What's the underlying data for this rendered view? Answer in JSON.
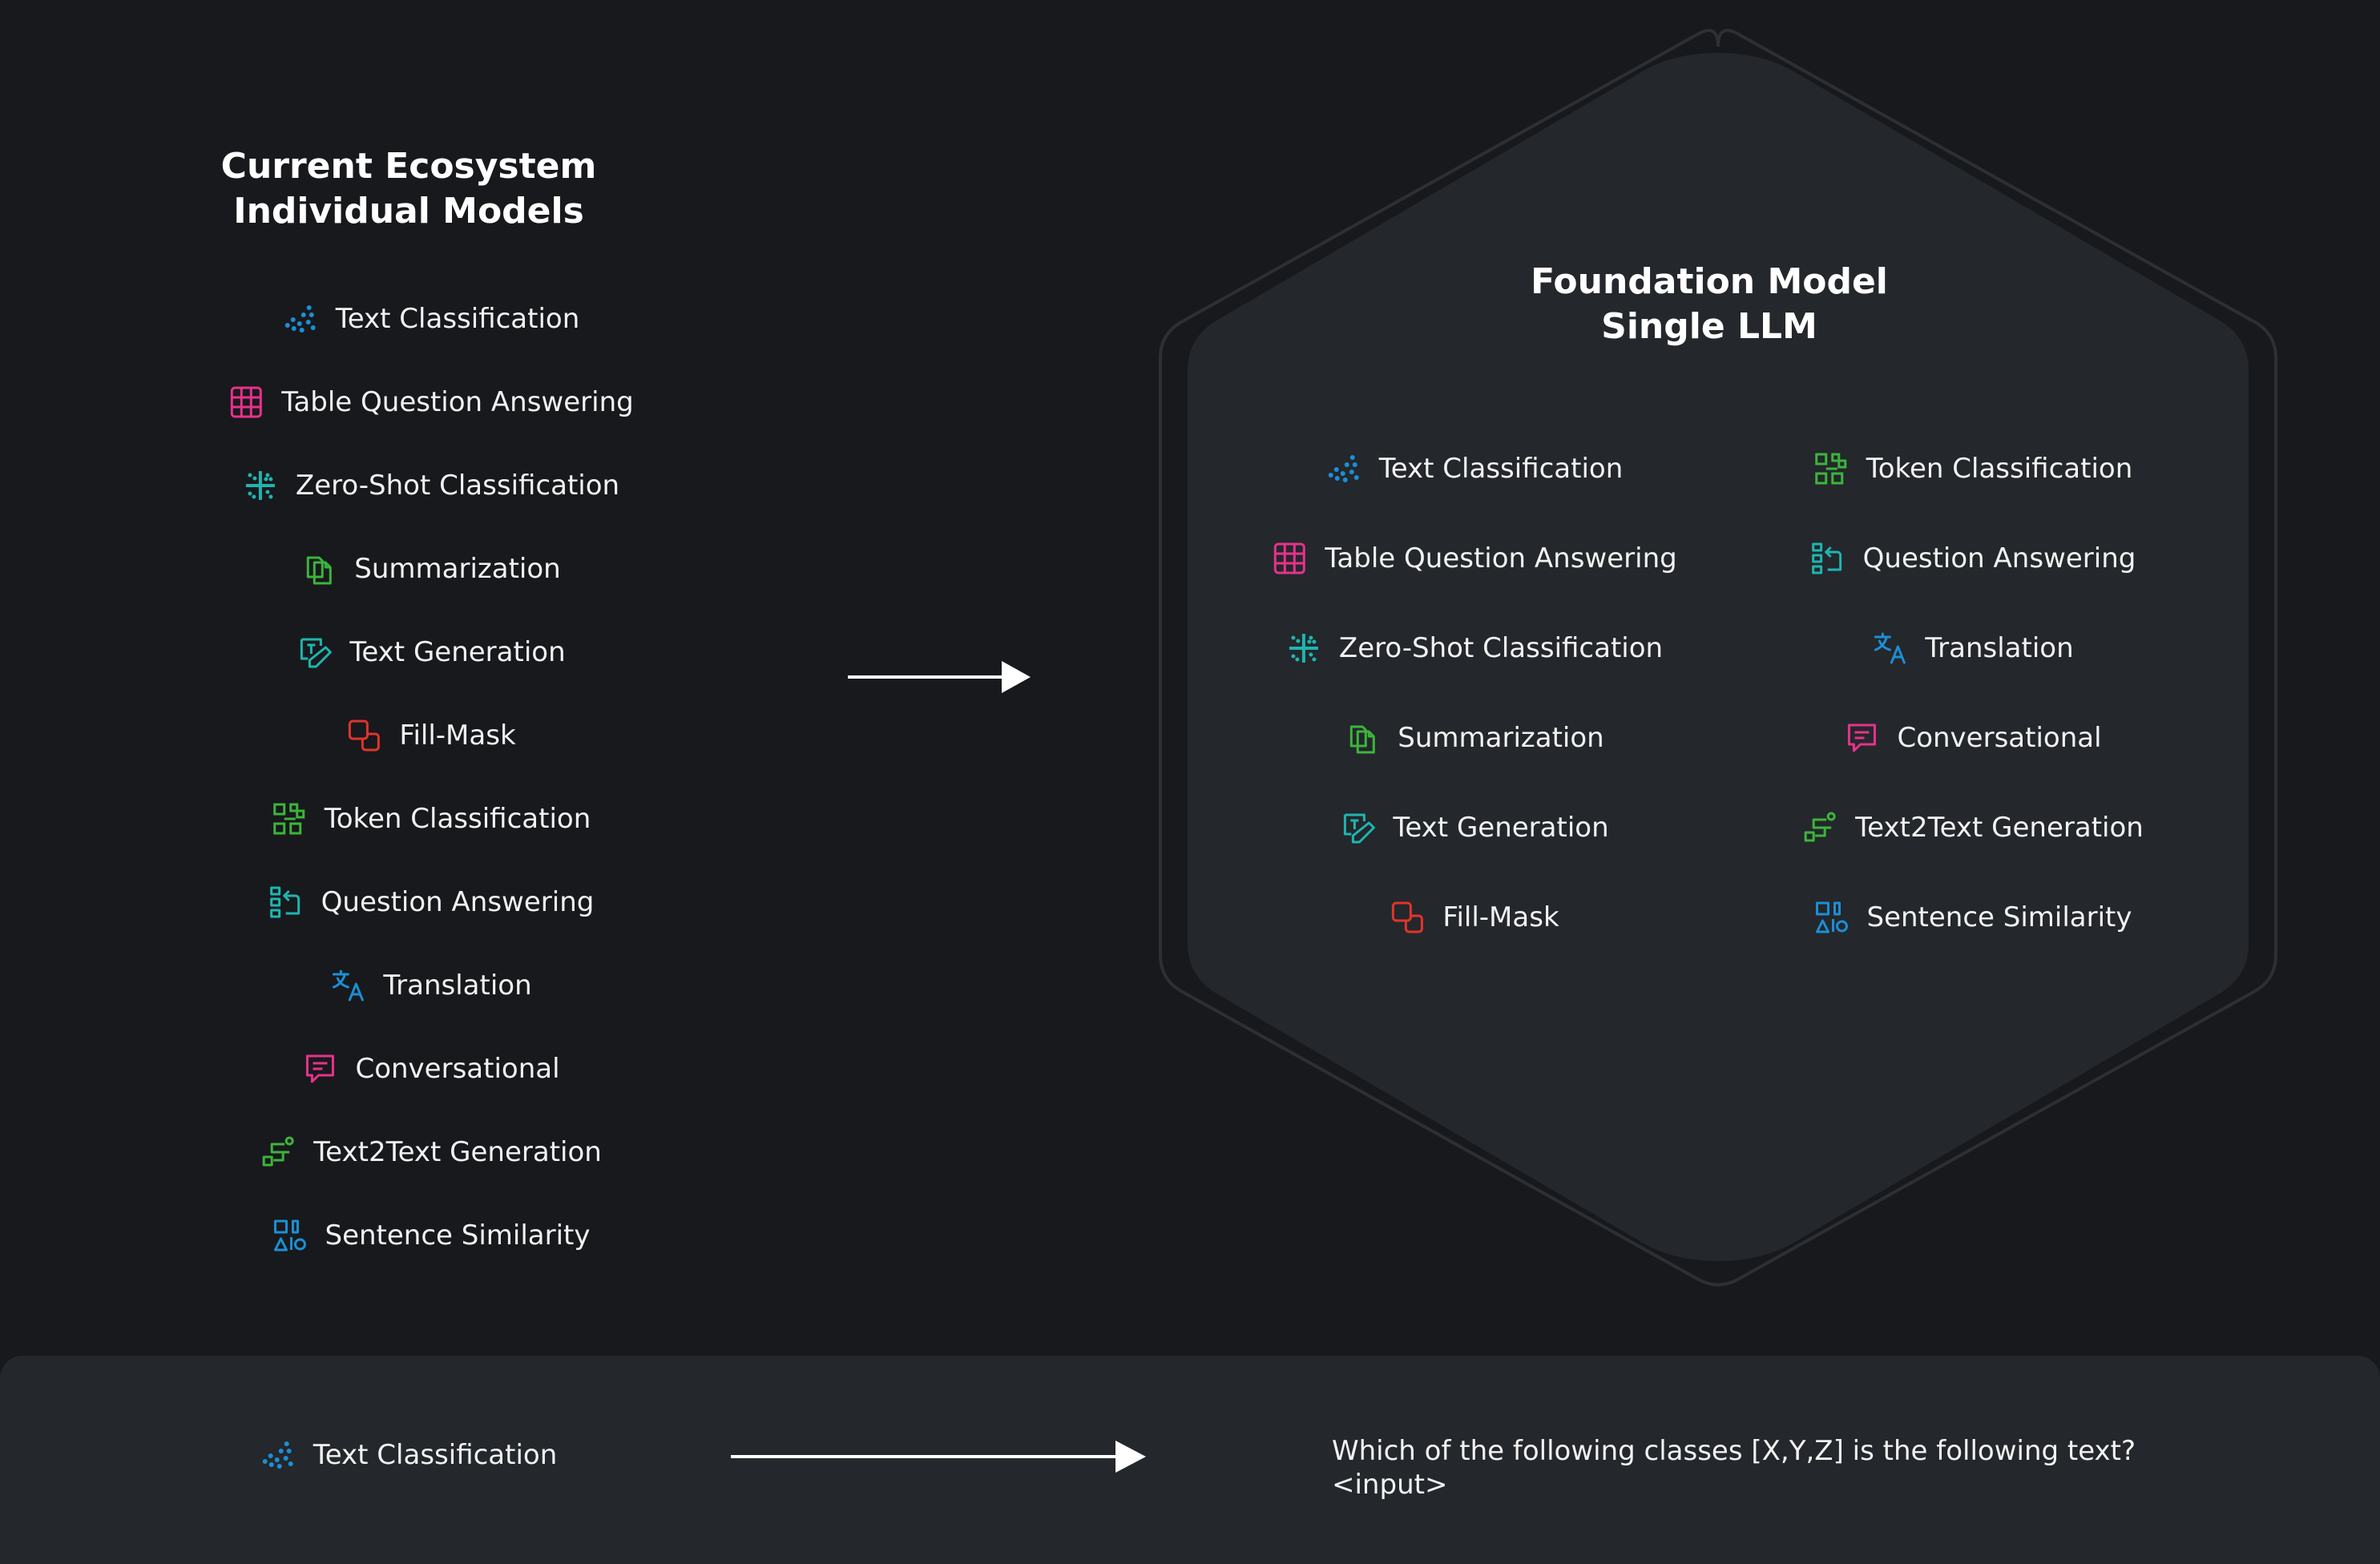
{
  "colors": {
    "background": "#18191c",
    "hex_fill": "#24272b",
    "blue": "#1b8fd6",
    "pink": "#e6328c",
    "green": "#3cb43c",
    "teal": "#1fb5b0",
    "red": "#e0342c"
  },
  "left": {
    "title_line1": "Current Ecosystem",
    "title_line2": "Individual Models",
    "tasks": [
      {
        "label": "Text Classification",
        "icon": "scatter-dots-icon"
      },
      {
        "label": "Table Question Answering",
        "icon": "table-grid-icon"
      },
      {
        "label": "Zero-Shot Classification",
        "icon": "dotted-cross-icon"
      },
      {
        "label": "Summarization",
        "icon": "copy-pages-icon"
      },
      {
        "label": "Text Generation",
        "icon": "text-pen-icon"
      },
      {
        "label": "Fill-Mask",
        "icon": "overlap-squares-icon"
      },
      {
        "label": "Token Classification",
        "icon": "token-blocks-icon"
      },
      {
        "label": "Question Answering",
        "icon": "list-arrow-icon"
      },
      {
        "label": "Translation",
        "icon": "translate-icon"
      },
      {
        "label": "Conversational",
        "icon": "chat-bubble-icon"
      },
      {
        "label": "Text2Text Generation",
        "icon": "flow-path-icon"
      },
      {
        "label": "Sentence Similarity",
        "icon": "shapes-icon"
      }
    ]
  },
  "right": {
    "title_line1": "Foundation Model",
    "title_line2": "Single LLM",
    "col1": [
      {
        "label": "Text Classification",
        "icon": "scatter-dots-icon"
      },
      {
        "label": "Table Question Answering",
        "icon": "table-grid-icon"
      },
      {
        "label": "Zero-Shot Classification",
        "icon": "dotted-cross-icon"
      },
      {
        "label": "Summarization",
        "icon": "copy-pages-icon"
      },
      {
        "label": "Text Generation",
        "icon": "text-pen-icon"
      },
      {
        "label": "Fill-Mask",
        "icon": "overlap-squares-icon"
      }
    ],
    "col2": [
      {
        "label": "Token Classification",
        "icon": "token-blocks-icon"
      },
      {
        "label": "Question Answering",
        "icon": "list-arrow-icon"
      },
      {
        "label": "Translation",
        "icon": "translate-icon"
      },
      {
        "label": "Conversational",
        "icon": "chat-bubble-icon"
      },
      {
        "label": "Text2Text Generation",
        "icon": "flow-path-icon"
      },
      {
        "label": "Sentence Similarity",
        "icon": "shapes-icon"
      }
    ]
  },
  "bottom": {
    "task_label": "Text Classification",
    "task_icon": "scatter-dots-icon",
    "prompt": "Which of the following classes [X,Y,Z] is the following text?\n<input>"
  }
}
